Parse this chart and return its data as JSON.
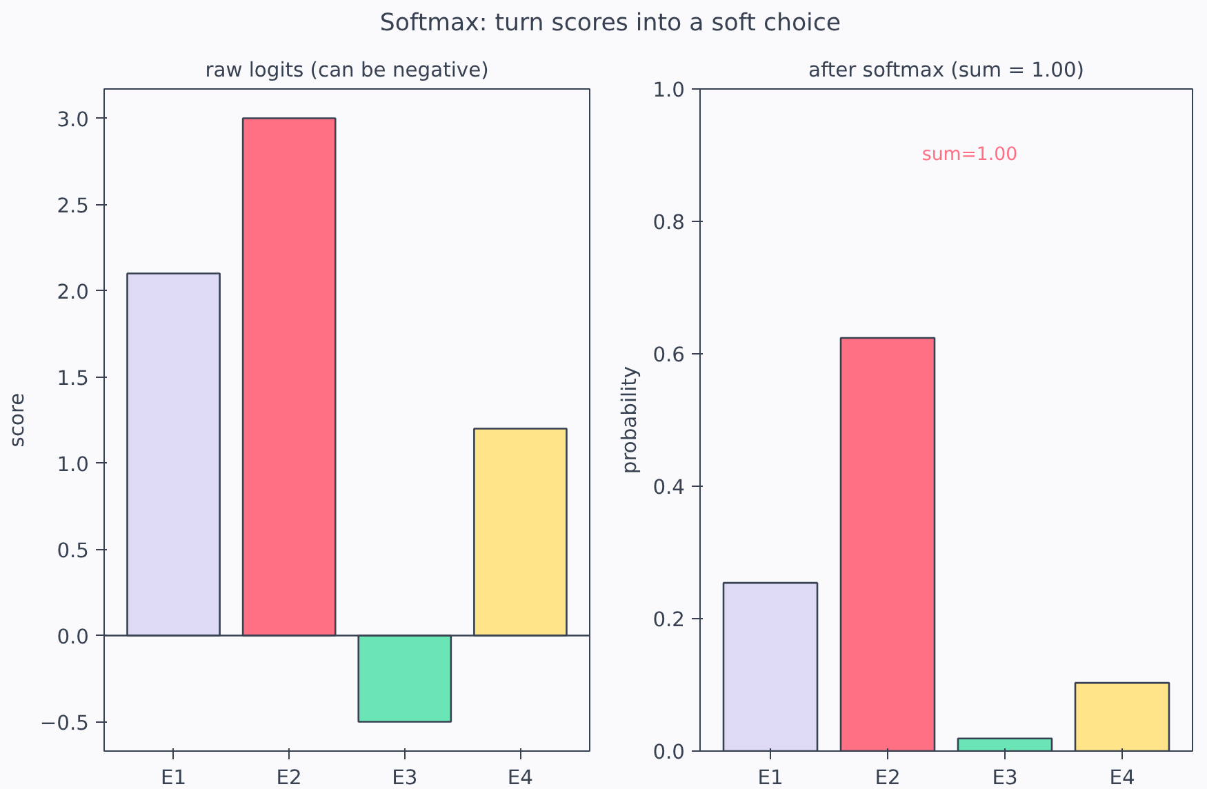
{
  "chart_data": [
    {
      "type": "bar",
      "title": "raw logits (can be negative)",
      "ylabel": "score",
      "categories": [
        "E1",
        "E2",
        "E3",
        "E4"
      ],
      "values": [
        2.1,
        3.0,
        -0.5,
        1.2
      ],
      "colors": [
        "#dedaf6",
        "#ff7085",
        "#6ae6b6",
        "#ffe48a"
      ],
      "ylim": [
        -0.67,
        3.17
      ],
      "yticks": [
        {
          "value": -0.5,
          "label": "−0.5"
        },
        {
          "value": 0,
          "label": "0.0"
        },
        {
          "value": 0.5,
          "label": "0.5"
        },
        {
          "value": 1,
          "label": "1.0"
        },
        {
          "value": 1.5,
          "label": "1.5"
        },
        {
          "value": 2,
          "label": "2.0"
        },
        {
          "value": 2.5,
          "label": "2.5"
        },
        {
          "value": 3,
          "label": "3.0"
        }
      ],
      "ref_lines": [
        {
          "axis": "y",
          "value": 0,
          "label": null,
          "color": "#374151"
        }
      ],
      "annotations": [
        "Softmax: turn scores into a soft choice"
      ],
      "grid": false
    },
    {
      "type": "bar",
      "title": "after softmax (sum = 1.00)",
      "ylabel": "probability",
      "categories": [
        "E1",
        "E2",
        "E3",
        "E4"
      ],
      "values": [
        0.254,
        0.624,
        0.019,
        0.103
      ],
      "colors": [
        "#dedaf6",
        "#ff7085",
        "#6ae6b6",
        "#ffe48a"
      ],
      "ylim": [
        0,
        1
      ],
      "yticks": [
        {
          "value": 0,
          "label": "0.0"
        },
        {
          "value": 0.2,
          "label": "0.2"
        },
        {
          "value": 0.4,
          "label": "0.4"
        },
        {
          "value": 0.6,
          "label": "0.6"
        },
        {
          "value": 0.8,
          "label": "0.8"
        },
        {
          "value": 1,
          "label": "1.0"
        }
      ],
      "annotations": [
        "sum=1.00"
      ],
      "grid": false
    }
  ]
}
